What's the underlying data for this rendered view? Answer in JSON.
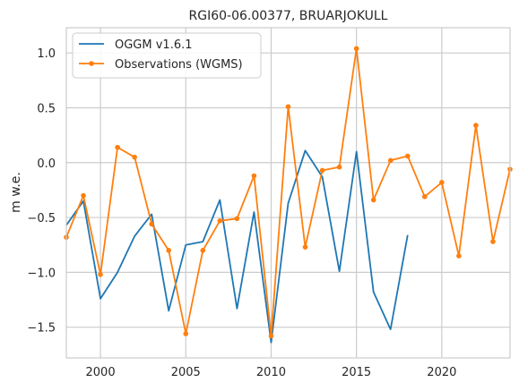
{
  "chart_data": {
    "type": "line",
    "title": "RGI60-06.00377, BRUARJOKULL",
    "xlabel": "",
    "ylabel": "m w.e.",
    "xlim": [
      1998,
      2024
    ],
    "ylim": [
      -1.78,
      1.23
    ],
    "xticks": [
      2000,
      2005,
      2010,
      2015,
      2020
    ],
    "yticks": [
      -1.5,
      -1.0,
      -0.5,
      0.0,
      0.5,
      1.0
    ],
    "ytick_labels": [
      "−1.5",
      "−1.0",
      "−0.5",
      "0.0",
      "0.5",
      "1.0"
    ],
    "grid": true,
    "legend": "top-left",
    "series": [
      {
        "name": "OGGM v1.6.1",
        "color": "#1f77b4",
        "marker": false,
        "points": [
          [
            1998,
            -0.57
          ],
          [
            1999,
            -0.35
          ],
          [
            2000,
            -1.24
          ],
          [
            2001,
            -1.0
          ],
          [
            2002,
            -0.67
          ],
          [
            2003,
            -0.47
          ],
          [
            2004,
            -1.35
          ],
          [
            2005,
            -0.75
          ],
          [
            2006,
            -0.72
          ],
          [
            2007,
            -0.34
          ],
          [
            2008,
            -1.33
          ],
          [
            2009,
            -0.45
          ],
          [
            2010,
            -1.64
          ],
          [
            2011,
            -0.37
          ],
          [
            2012,
            0.11
          ],
          [
            2013,
            -0.13
          ],
          [
            2014,
            -0.99
          ],
          [
            2015,
            0.1
          ],
          [
            2016,
            -1.18
          ],
          [
            2017,
            -1.52
          ],
          [
            2018,
            -0.66
          ]
        ]
      },
      {
        "name": "Observations (WGMS)",
        "color": "#ff7f0e",
        "marker": true,
        "points": [
          [
            1998,
            -0.68
          ],
          [
            1999,
            -0.3
          ],
          [
            2000,
            -1.02
          ],
          [
            2001,
            0.14
          ],
          [
            2002,
            0.05
          ],
          [
            2003,
            -0.56
          ],
          [
            2004,
            -0.8
          ],
          [
            2005,
            -1.56
          ],
          [
            2006,
            -0.8
          ],
          [
            2007,
            -0.53
          ],
          [
            2008,
            -0.51
          ],
          [
            2009,
            -0.12
          ],
          [
            2010,
            -1.58
          ],
          [
            2011,
            0.51
          ],
          [
            2012,
            -0.77
          ],
          [
            2013,
            -0.07
          ],
          [
            2014,
            -0.04
          ],
          [
            2015,
            1.04
          ],
          [
            2016,
            -0.34
          ],
          [
            2017,
            0.02
          ],
          [
            2018,
            0.06
          ],
          [
            2019,
            -0.31
          ],
          [
            2020,
            -0.18
          ],
          [
            2021,
            -0.85
          ],
          [
            2022,
            0.34
          ],
          [
            2023,
            -0.72
          ],
          [
            2024,
            -0.06
          ]
        ]
      }
    ]
  }
}
